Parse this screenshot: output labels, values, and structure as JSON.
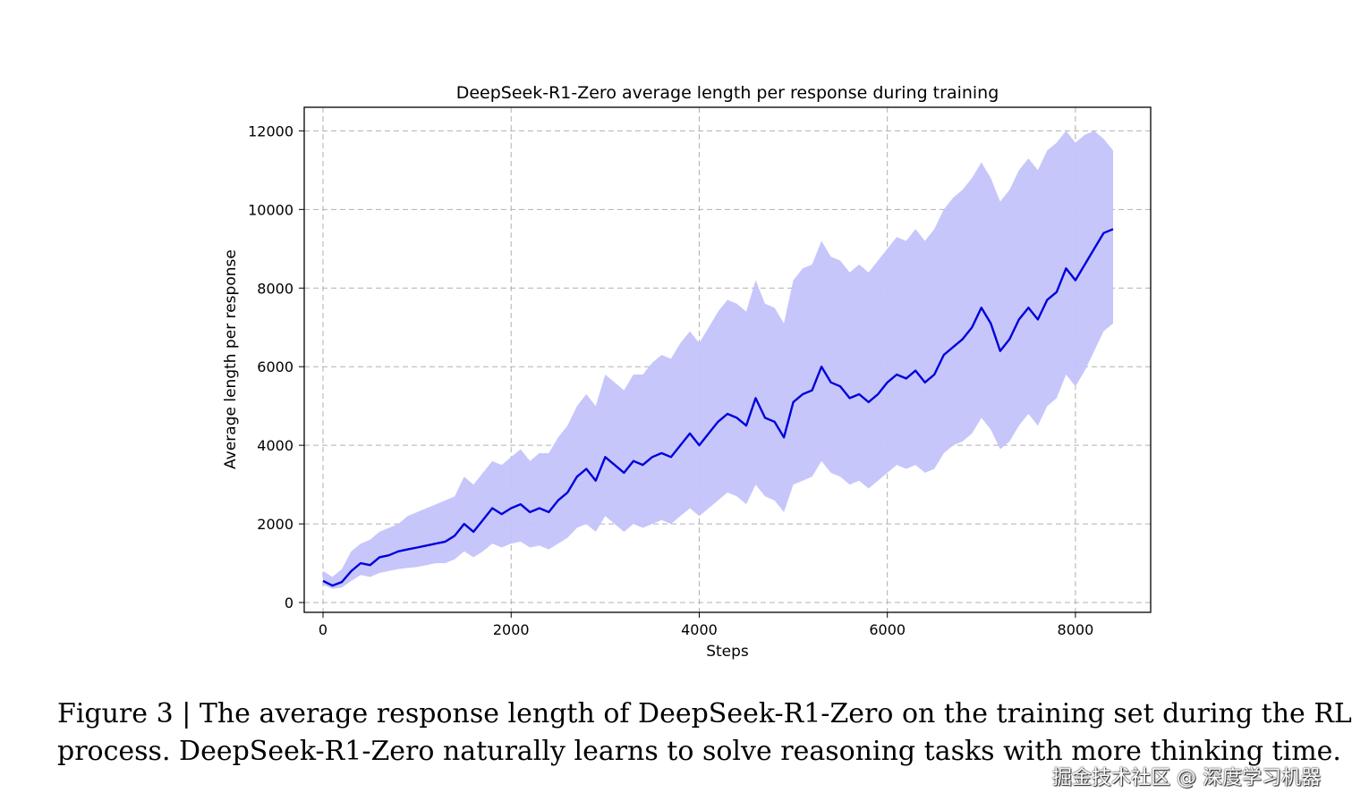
{
  "chart_data": {
    "type": "line",
    "title": "DeepSeek-R1-Zero average length per response during training",
    "xlabel": "Steps",
    "ylabel": "Average length per response",
    "xlim": [
      -200,
      8800
    ],
    "ylim": [
      -250,
      12600
    ],
    "x_ticks": [
      0,
      2000,
      4000,
      6000,
      8000
    ],
    "y_ticks": [
      0,
      2000,
      4000,
      6000,
      8000,
      10000,
      12000
    ],
    "grid": true,
    "series": [
      {
        "color": "#0000dd",
        "band_color": "#c3c3fb",
        "x": [
          0,
          100,
          200,
          300,
          400,
          500,
          600,
          700,
          800,
          900,
          1000,
          1100,
          1200,
          1300,
          1400,
          1500,
          1600,
          1700,
          1800,
          1900,
          2000,
          2100,
          2200,
          2300,
          2400,
          2500,
          2600,
          2700,
          2800,
          2900,
          3000,
          3100,
          3200,
          3300,
          3400,
          3500,
          3600,
          3700,
          3800,
          3900,
          4000,
          4100,
          4200,
          4300,
          4400,
          4500,
          4600,
          4700,
          4800,
          4900,
          5000,
          5100,
          5200,
          5300,
          5400,
          5500,
          5600,
          5700,
          5800,
          5900,
          6000,
          6100,
          6200,
          6300,
          6400,
          6500,
          6600,
          6700,
          6800,
          6900,
          7000,
          7100,
          7200,
          7300,
          7400,
          7500,
          7600,
          7700,
          7800,
          7900,
          8000,
          8100,
          8200,
          8300,
          8400
        ],
        "y": [
          550,
          430,
          520,
          800,
          1000,
          950,
          1150,
          1200,
          1300,
          1350,
          1400,
          1450,
          1500,
          1550,
          1700,
          2000,
          1800,
          2100,
          2400,
          2250,
          2400,
          2500,
          2300,
          2400,
          2300,
          2600,
          2800,
          3200,
          3400,
          3100,
          3700,
          3500,
          3300,
          3600,
          3500,
          3700,
          3800,
          3700,
          4000,
          4300,
          4000,
          4300,
          4600,
          4800,
          4700,
          4500,
          5200,
          4700,
          4600,
          4200,
          5100,
          5300,
          5400,
          6000,
          5600,
          5500,
          5200,
          5300,
          5100,
          5300,
          5600,
          5800,
          5700,
          5900,
          5600,
          5800,
          6300,
          6500,
          6700,
          7000,
          7500,
          7100,
          6400,
          6700,
          7200,
          7500,
          7200,
          7700,
          7900,
          8500,
          8200,
          8600,
          9000,
          9400,
          9500
        ],
        "band_upper": [
          800,
          650,
          850,
          1300,
          1500,
          1600,
          1800,
          1900,
          2000,
          2200,
          2300,
          2400,
          2500,
          2600,
          2700,
          3200,
          3000,
          3300,
          3600,
          3500,
          3700,
          3900,
          3600,
          3800,
          3800,
          4200,
          4500,
          5000,
          5300,
          5000,
          5800,
          5600,
          5400,
          5800,
          5800,
          6100,
          6300,
          6200,
          6600,
          6900,
          6600,
          7000,
          7400,
          7700,
          7600,
          7400,
          8200,
          7600,
          7500,
          7100,
          8200,
          8500,
          8600,
          9200,
          8800,
          8700,
          8400,
          8600,
          8400,
          8700,
          9000,
          9300,
          9200,
          9500,
          9200,
          9500,
          10000,
          10300,
          10500,
          10800,
          11200,
          10800,
          10200,
          10500,
          11000,
          11300,
          11000,
          11500,
          11700,
          12000,
          11700,
          11900,
          12000,
          11800,
          11500
        ],
        "band_lower": [
          450,
          350,
          380,
          550,
          700,
          650,
          750,
          800,
          850,
          880,
          900,
          950,
          1000,
          1000,
          1100,
          1300,
          1150,
          1300,
          1500,
          1400,
          1500,
          1550,
          1400,
          1450,
          1350,
          1500,
          1650,
          1900,
          2000,
          1800,
          2200,
          2000,
          1800,
          2000,
          1900,
          2000,
          2100,
          2000,
          2200,
          2400,
          2200,
          2400,
          2600,
          2800,
          2700,
          2500,
          3000,
          2700,
          2600,
          2300,
          3000,
          3100,
          3200,
          3600,
          3300,
          3200,
          3000,
          3100,
          2900,
          3100,
          3300,
          3500,
          3400,
          3500,
          3300,
          3400,
          3800,
          4000,
          4100,
          4300,
          4700,
          4400,
          3900,
          4100,
          4500,
          4800,
          4500,
          5000,
          5200,
          5800,
          5500,
          5900,
          6400,
          6900,
          7100
        ]
      }
    ]
  },
  "caption": {
    "line1": "Figure 3 | The average response length of DeepSeek-R1-Zero on the training set during the RL",
    "line2": "process. DeepSeek-R1-Zero naturally learns to solve reasoning tasks with more thinking time."
  },
  "watermark": "掘金技术社区 @ 深度学习机器"
}
